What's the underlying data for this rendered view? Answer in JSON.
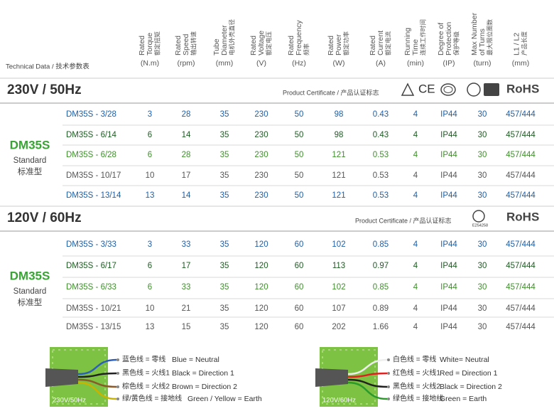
{
  "header": {
    "label": "Technical Data / 技术参数表",
    "columns": [
      {
        "lines": [
          "Rated",
          "Torque",
          "额定扭矩"
        ],
        "unit": "(N.m)"
      },
      {
        "lines": [
          "Rated",
          "Speed",
          "输出转速"
        ],
        "unit": "(rpm)"
      },
      {
        "lines": [
          "Tube",
          "Diameter",
          "电机外壳直径"
        ],
        "unit": "(mm)"
      },
      {
        "lines": [
          "Rated",
          "Voltage",
          "额定电压"
        ],
        "unit": "(V)"
      },
      {
        "lines": [
          "Rated",
          "Frequency",
          "频率"
        ],
        "unit": "(Hz)"
      },
      {
        "lines": [
          "Rated",
          "Power",
          "额定功率"
        ],
        "unit": "(W)"
      },
      {
        "lines": [
          "Rated",
          "Current",
          "额定电流"
        ],
        "unit": "(A)"
      },
      {
        "lines": [
          "Running",
          "Time",
          "连续工作时间"
        ],
        "unit": "(min)"
      },
      {
        "lines": [
          "Degree of",
          "Protection",
          "保护等级"
        ],
        "unit": "(IP)"
      },
      {
        "lines": [
          "Max Number",
          "of Turns",
          "最大限位圈数"
        ],
        "unit": "(turn)"
      },
      {
        "lines": [
          "L1 / L2",
          "产品长度"
        ],
        "unit": "(mm)"
      }
    ]
  },
  "sections": [
    {
      "title": "230V / 50Hz",
      "certificate_label": "Product Certificate / 产品认证标志",
      "certificates": [
        "CE",
        "RoHS"
      ],
      "group": {
        "name": "DM35S",
        "lines": [
          "Standard",
          "标准型"
        ]
      },
      "rows": [
        {
          "color": "#1f5fa6",
          "cells": [
            "DM35S - 3/28",
            "3",
            "28",
            "35",
            "230",
            "50",
            "98",
            "0.43",
            "4",
            "IP44",
            "30",
            "457/444"
          ]
        },
        {
          "color": "#1d5b22",
          "cells": [
            "DM35S - 6/14",
            "6",
            "14",
            "35",
            "230",
            "50",
            "98",
            "0.43",
            "4",
            "IP44",
            "30",
            "457/444"
          ]
        },
        {
          "color": "#3f8f2c",
          "cells": [
            "DM35S - 6/28",
            "6",
            "28",
            "35",
            "230",
            "50",
            "121",
            "0.53",
            "4",
            "IP44",
            "30",
            "457/444"
          ]
        },
        {
          "color": "#555555",
          "cells": [
            "DM35S - 10/17",
            "10",
            "17",
            "35",
            "230",
            "50",
            "121",
            "0.53",
            "4",
            "IP44",
            "30",
            "457/444"
          ]
        },
        {
          "color": "#1f5fa6",
          "cells": [
            "DM35S - 13/14",
            "13",
            "14",
            "35",
            "230",
            "50",
            "121",
            "0.53",
            "4",
            "IP44",
            "30",
            "457/444"
          ]
        }
      ]
    },
    {
      "title": "120V / 60Hz",
      "certificate_label": "Product Certificate / 产品认证标志",
      "certificates": [
        "E254258",
        "RoHS"
      ],
      "group": {
        "name": "DM35S",
        "lines": [
          "Standard",
          "标准型"
        ]
      },
      "rows": [
        {
          "color": "#1f5fa6",
          "cells": [
            "DM35S - 3/33",
            "3",
            "33",
            "35",
            "120",
            "60",
            "102",
            "0.85",
            "4",
            "IP44",
            "30",
            "457/444"
          ]
        },
        {
          "color": "#1d5b22",
          "cells": [
            "DM35S - 6/17",
            "6",
            "17",
            "35",
            "120",
            "60",
            "113",
            "0.97",
            "4",
            "IP44",
            "30",
            "457/444"
          ]
        },
        {
          "color": "#3f8f2c",
          "cells": [
            "DM35S - 6/33",
            "6",
            "33",
            "35",
            "120",
            "60",
            "102",
            "0.85",
            "4",
            "IP44",
            "30",
            "457/444"
          ]
        },
        {
          "color": "#555555",
          "cells": [
            "DM35S - 10/21",
            "10",
            "21",
            "35",
            "120",
            "60",
            "107",
            "0.89",
            "4",
            "IP44",
            "30",
            "457/444"
          ]
        },
        {
          "color": "#555555",
          "cells": [
            "DM35S - 13/15",
            "13",
            "15",
            "35",
            "120",
            "60",
            "202",
            "1.66",
            "4",
            "IP44",
            "30",
            "457/444"
          ]
        }
      ]
    }
  ],
  "wiring": [
    {
      "label": "230V/50Hz",
      "wires": [
        [
          "蓝色线 = 零线",
          "Blue = Neutral"
        ],
        [
          "黑色线 = 火线1",
          "Black = Direction 1"
        ],
        [
          "棕色线 = 火线2",
          "Brown = Direction 2"
        ],
        [
          "绿/黄色线 = 接地线",
          "Green / Yellow = Earth"
        ]
      ]
    },
    {
      "label": "120V/60Hz",
      "wires": [
        [
          "白色线 = 零线",
          "White= Neutral"
        ],
        [
          "红色线 = 火线1",
          "Red = Direction 1"
        ],
        [
          "黑色线 = 火线2",
          "Black = Direction 2"
        ],
        [
          "绿色线 = 接地线",
          "Green = Earth"
        ]
      ]
    }
  ]
}
